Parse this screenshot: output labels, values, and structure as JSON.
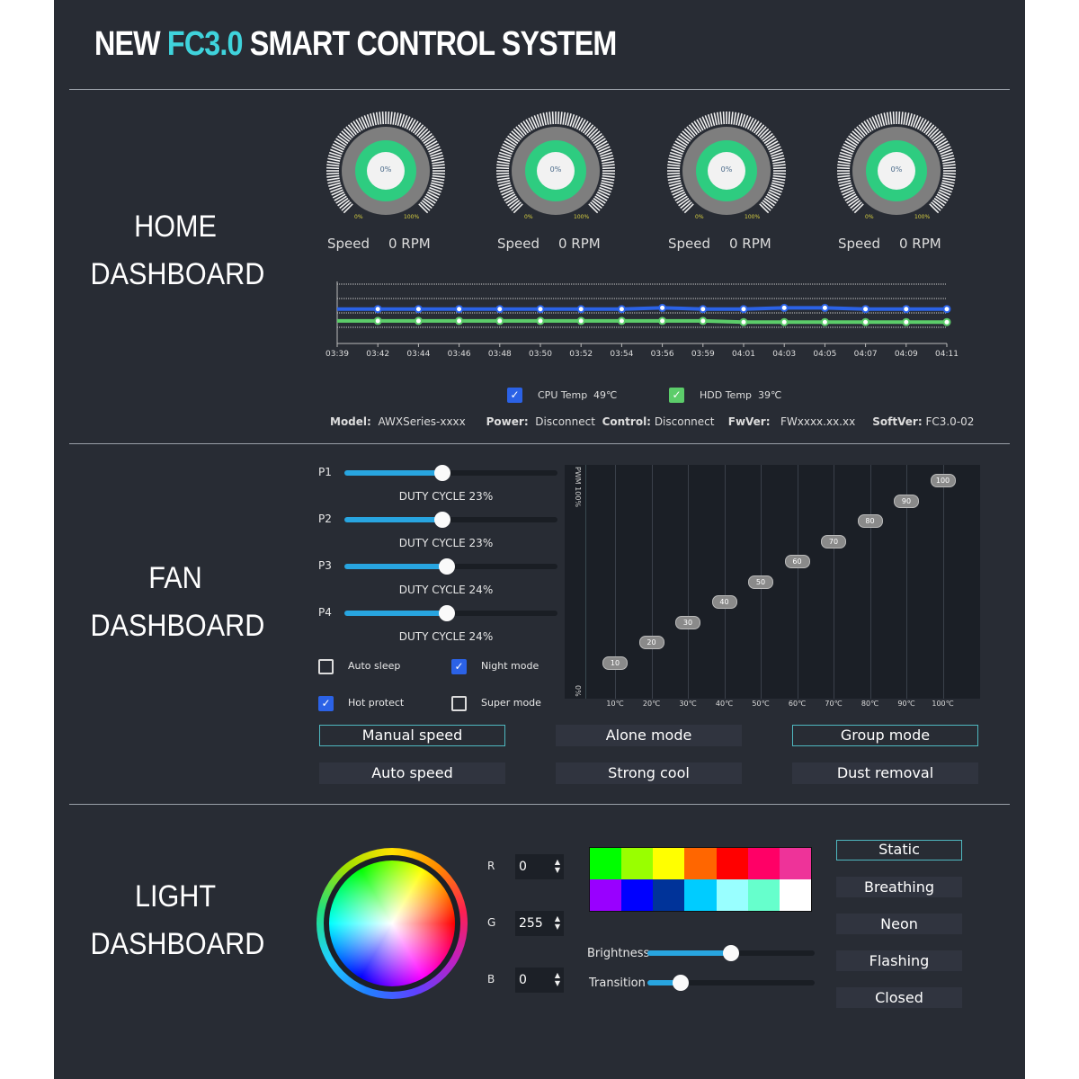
{
  "header": {
    "title_pre": "NEW ",
    "title_accent": "FC3.0",
    "title_post": " SMART CONTROL SYSTEM"
  },
  "home": {
    "label1": "HOME",
    "label2": "DASHBOARD",
    "gauges": [
      {
        "value": "0%",
        "min": "0%",
        "max": "100%",
        "speed_label": "Speed",
        "rpm": "0 RPM"
      },
      {
        "value": "0%",
        "min": "0%",
        "max": "100%",
        "speed_label": "Speed",
        "rpm": "0 RPM"
      },
      {
        "value": "0%",
        "min": "0%",
        "max": "100%",
        "speed_label": "Speed",
        "rpm": "0 RPM"
      },
      {
        "value": "0%",
        "min": "0%",
        "max": "100%",
        "speed_label": "Speed",
        "rpm": "0 RPM"
      }
    ],
    "legend": [
      {
        "label": "CPU Temp",
        "value": "49℃",
        "color": "#2b62e6",
        "checked": true
      },
      {
        "label": "HDD Temp",
        "value": "39℃",
        "color": "#5ccd6a",
        "checked": true
      }
    ],
    "info": [
      {
        "key": "Model:",
        "value": "AWXSeries-xxxx"
      },
      {
        "key": "Power:",
        "value": "Disconnect"
      },
      {
        "key": "Control:",
        "value": "Disconnect"
      },
      {
        "key": "FwVer:",
        "value": "FWxxxx.xx.xx"
      },
      {
        "key": "SoftVer:",
        "value": "FC3.0-02"
      }
    ]
  },
  "chart_data": [
    {
      "type": "line",
      "x": [
        "03:39",
        "03:42",
        "03:44",
        "03:46",
        "03:48",
        "03:50",
        "03:52",
        "03:54",
        "03:56",
        "03:59",
        "04:01",
        "04:03",
        "04:05",
        "04:07",
        "04:09",
        "04:11"
      ],
      "ylim": [
        20,
        70
      ],
      "grid": true,
      "series": [
        {
          "name": "CPU Temp",
          "color": "#2b62e6",
          "values": [
            49,
            49,
            49,
            49,
            49,
            49,
            49,
            49,
            50,
            49,
            49,
            50,
            50,
            49,
            49,
            49
          ]
        },
        {
          "name": "HDD Temp",
          "color": "#5ccd6a",
          "values": [
            39,
            39,
            39,
            39,
            39,
            39,
            39,
            39,
            39,
            39,
            38,
            38,
            38,
            38,
            38,
            38
          ]
        }
      ]
    },
    {
      "type": "scatter",
      "title": "",
      "ylabel_top": "PWM 100%",
      "ylabel_bottom": "0%",
      "x": [
        "10℃",
        "20℃",
        "30℃",
        "40℃",
        "50℃",
        "60℃",
        "70℃",
        "80℃",
        "90℃",
        "100℃"
      ],
      "values": [
        10,
        20,
        30,
        40,
        50,
        60,
        70,
        80,
        90,
        100
      ],
      "ylim": [
        -3,
        108
      ]
    }
  ],
  "fan": {
    "label1": "FAN",
    "label2": "DASHBOARD",
    "sliders": [
      {
        "label": "P1",
        "duty": "DUTY CYCLE 23%",
        "value": 0.46
      },
      {
        "label": "P2",
        "duty": "DUTY CYCLE 23%",
        "value": 0.46
      },
      {
        "label": "P3",
        "duty": "DUTY CYCLE 24%",
        "value": 0.48
      },
      {
        "label": "P4",
        "duty": "DUTY CYCLE 24%",
        "value": 0.48
      }
    ],
    "checkboxes": [
      {
        "label": "Auto sleep",
        "checked": false
      },
      {
        "label": "Night mode",
        "checked": true
      },
      {
        "label": "Hot protect",
        "checked": true
      },
      {
        "label": "Super mode",
        "checked": false
      }
    ],
    "buttons": [
      {
        "label": "Manual speed",
        "selected": true
      },
      {
        "label": "Alone mode",
        "selected": false
      },
      {
        "label": "Group mode",
        "selected": true
      },
      {
        "label": "Auto speed",
        "selected": false
      },
      {
        "label": "Strong cool",
        "selected": false
      },
      {
        "label": "Dust removal",
        "selected": false
      }
    ]
  },
  "light": {
    "label1": "LIGHT",
    "label2": "DASHBOARD",
    "rgb": [
      {
        "label": "R",
        "value": "0"
      },
      {
        "label": "G",
        "value": "255"
      },
      {
        "label": "B",
        "value": "0"
      }
    ],
    "swatches": [
      "#00ff00",
      "#99ff00",
      "#ffff00",
      "#ff6600",
      "#ff0000",
      "#ff0066",
      "#ee3399",
      "#9900ff",
      "#0000ff",
      "#003399",
      "#00ccff",
      "#99ffff",
      "#66ffcc",
      "#ffffff"
    ],
    "brightness": {
      "label": "Brightness",
      "value": 0.5
    },
    "transition": {
      "label": "Transition",
      "value": 0.2
    },
    "modes": [
      {
        "label": "Static",
        "selected": true
      },
      {
        "label": "Breathing"
      },
      {
        "label": "Neon"
      },
      {
        "label": "Flashing"
      },
      {
        "label": "Closed"
      }
    ]
  }
}
